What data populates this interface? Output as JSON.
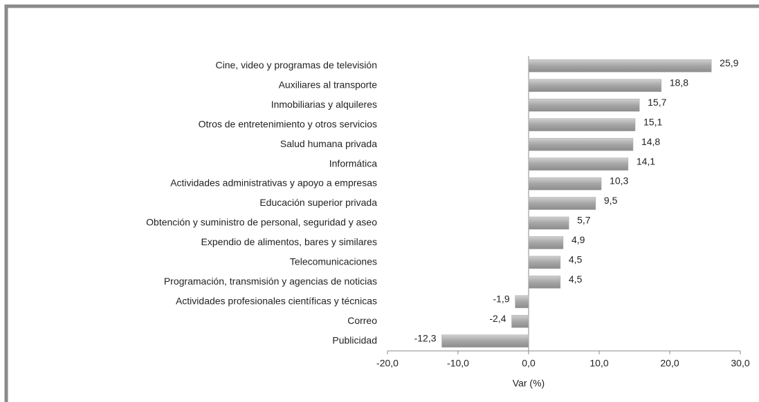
{
  "chart_data": {
    "type": "barh",
    "categories": [
      "Cine, video y programas de televisión",
      "Auxiliares al transporte",
      "Inmobiliarias y alquileres",
      "Otros de entretenimiento y otros servicios",
      "Salud humana privada",
      "Informática",
      "Actividades administrativas y apoyo a empresas",
      "Educación superior privada",
      "Obtención y suministro de personal, seguridad y aseo",
      "Expendio de alimentos, bares y similares",
      "Telecomunicaciones",
      "Programación, transmisión y agencias de noticias",
      "Actividades profesionales científicas y técnicas",
      "Correo",
      "Publicidad"
    ],
    "values": [
      25.9,
      18.8,
      15.7,
      15.1,
      14.8,
      14.1,
      10.3,
      9.5,
      5.7,
      4.9,
      4.5,
      4.5,
      -1.9,
      -2.4,
      -12.3
    ],
    "value_labels": [
      "25,9",
      "18,8",
      "15,7",
      "15,1",
      "14,8",
      "14,1",
      "10,3",
      "9,5",
      "5,7",
      "4,9",
      "4,5",
      "4,5",
      "-1,9",
      "-2,4",
      "-12,3"
    ],
    "color": "#a6a6a6",
    "xlabel": "Var (%)",
    "xlim": [
      -20,
      30
    ],
    "xticks": [
      {
        "value": -20,
        "label": "-20,0"
      },
      {
        "value": -10,
        "label": "-10,0"
      },
      {
        "value": 0,
        "label": "0,0"
      },
      {
        "value": 10,
        "label": "10,0"
      },
      {
        "value": 20,
        "label": "20,0"
      },
      {
        "value": 30,
        "label": "30,0"
      }
    ]
  }
}
